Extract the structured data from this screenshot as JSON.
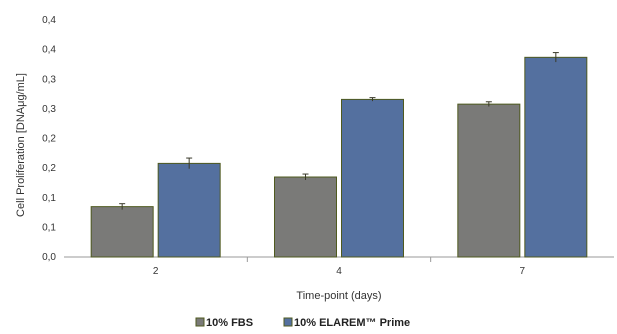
{
  "chart_data": {
    "type": "bar",
    "title": "",
    "xlabel": "Time-point (days)",
    "ylabel": "Cell Proliferation [DNAμg/mL]",
    "categories": [
      "2",
      "4",
      "7"
    ],
    "y_ticks": [
      "0,0",
      "0,1",
      "0,1",
      "0,2",
      "0,2",
      "0,3",
      "0,3",
      "0,4",
      "0,4"
    ],
    "ylim": [
      0,
      0.4
    ],
    "grid": false,
    "legend_position": "bottom",
    "series": [
      {
        "name": "10% FBS",
        "color": "#7a7a78",
        "values": [
          0.085,
          0.135,
          0.258
        ],
        "errors": [
          0.005,
          0.005,
          0.004
        ]
      },
      {
        "name": "10% ELAREM™ Prime",
        "color": "#54709f",
        "values": [
          0.158,
          0.266,
          0.337
        ],
        "errors": [
          0.009,
          0.003,
          0.008
        ]
      }
    ]
  }
}
